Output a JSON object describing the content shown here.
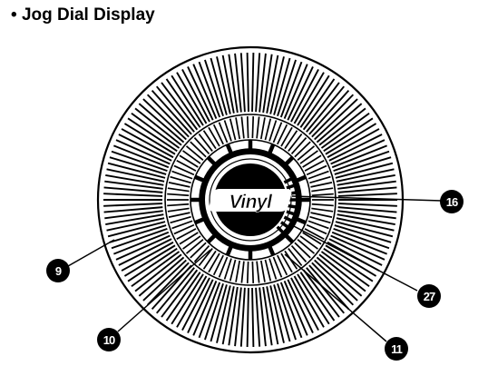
{
  "heading": {
    "bullet": "•",
    "title": "Jog Dial Display"
  },
  "center_logo": "Vinyl",
  "callouts": [
    {
      "id": "callout-16",
      "label": "16"
    },
    {
      "id": "callout-9",
      "label": "9"
    },
    {
      "id": "callout-27",
      "label": "27"
    },
    {
      "id": "callout-10",
      "label": "10"
    },
    {
      "id": "callout-11",
      "label": "11"
    }
  ],
  "colors": {
    "ink": "#000000",
    "paper": "#ffffff"
  }
}
